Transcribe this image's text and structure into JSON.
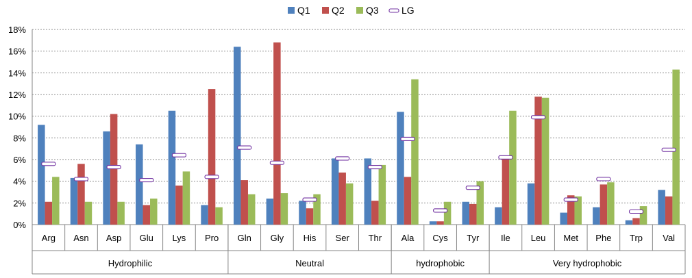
{
  "chart_data": {
    "type": "bar",
    "title": "",
    "xlabel": "",
    "ylabel": "",
    "ylim": [
      0,
      18
    ],
    "y_ticks": [
      "0%",
      "2%",
      "4%",
      "6%",
      "8%",
      "10%",
      "12%",
      "14%",
      "16%",
      "18%"
    ],
    "grid": true,
    "legend_position": "top",
    "categories": [
      "Arg",
      "Asn",
      "Asp",
      "Glu",
      "Lys",
      "Pro",
      "Gln",
      "Gly",
      "His",
      "Ser",
      "Thr",
      "Ala",
      "Cys",
      "Tyr",
      "Ile",
      "Leu",
      "Met",
      "Phe",
      "Trp",
      "Val"
    ],
    "groups": [
      {
        "label": "Hydrophilic",
        "start": 0,
        "end": 5
      },
      {
        "label": "Neutral",
        "start": 6,
        "end": 10
      },
      {
        "label": "hydrophobic",
        "start": 11,
        "end": 13
      },
      {
        "label": "Very hydrophobic",
        "start": 14,
        "end": 19
      }
    ],
    "series": [
      {
        "name": "Q1",
        "color": "#4F81BD",
        "values": [
          9.2,
          4.3,
          8.6,
          7.4,
          10.5,
          1.8,
          16.4,
          2.4,
          2.2,
          6.1,
          6.1,
          10.4,
          0.3,
          2.1,
          1.6,
          3.8,
          1.1,
          1.6,
          0.4,
          3.2
        ]
      },
      {
        "name": "Q2",
        "color": "#C0504D",
        "values": [
          2.1,
          5.6,
          10.2,
          1.8,
          3.6,
          12.5,
          4.1,
          16.8,
          1.5,
          4.8,
          2.2,
          4.4,
          0.3,
          1.9,
          6.2,
          11.8,
          2.7,
          3.7,
          0.6,
          2.6
        ]
      },
      {
        "name": "Q3",
        "color": "#9BBB59",
        "values": [
          4.4,
          2.1,
          2.1,
          2.4,
          4.9,
          1.6,
          2.8,
          2.9,
          2.8,
          3.8,
          5.5,
          13.4,
          2.1,
          4.0,
          10.5,
          11.7,
          2.6,
          3.9,
          1.7,
          14.3
        ]
      }
    ],
    "markers": {
      "name": "LG",
      "color": "#7030A0",
      "values": [
        5.6,
        4.2,
        5.3,
        4.1,
        6.4,
        4.4,
        7.1,
        5.7,
        2.3,
        6.1,
        5.3,
        7.9,
        1.3,
        3.4,
        6.2,
        9.9,
        2.3,
        4.2,
        1.2,
        6.9
      ]
    }
  }
}
